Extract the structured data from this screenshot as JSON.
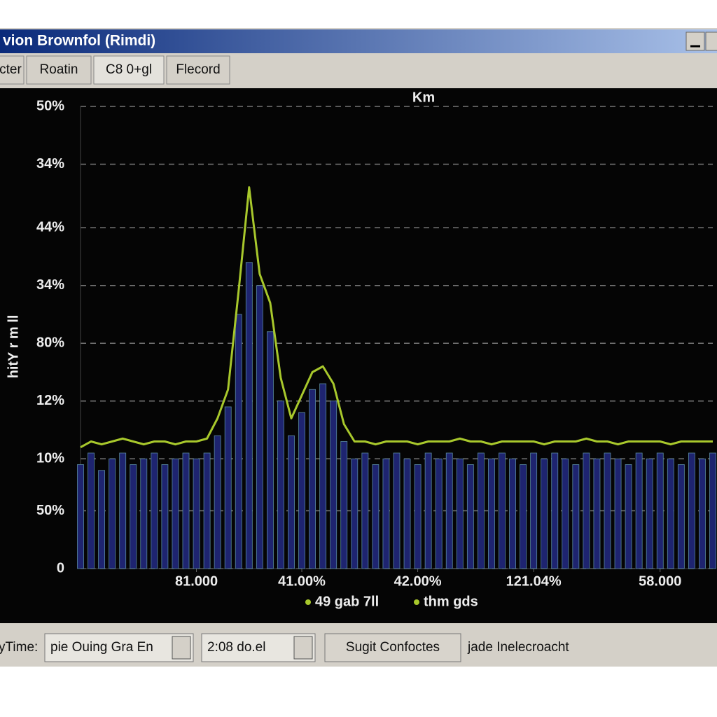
{
  "window": {
    "title": "vion Brownfol (Rimdi)"
  },
  "tabs": [
    "cter",
    "Roatin",
    "C8 0+gl",
    "Flecord"
  ],
  "chart_data": {
    "type": "line",
    "title": "Km",
    "y_label": "hitY r m ll",
    "xlim": [
      0,
      60
    ],
    "ylim": [
      0,
      8
    ],
    "grid": true,
    "xticks": [
      {
        "value": 11,
        "label": "81.000"
      },
      {
        "value": 21,
        "label": "41.00%"
      },
      {
        "value": 32,
        "label": "42.00%"
      },
      {
        "value": 43,
        "label": "121.04%"
      },
      {
        "value": 55,
        "label": "58.000"
      }
    ],
    "yticks": [
      0,
      {
        "value": 1,
        "label": "50%"
      },
      {
        "value": 1.9,
        "label": "10%"
      },
      {
        "value": 2.9,
        "label": "12%"
      },
      {
        "value": 3.9,
        "label": "80%"
      },
      {
        "value": 4.9,
        "label": "34%"
      },
      {
        "value": 5.9,
        "label": "44%"
      },
      {
        "value": 7,
        "label": "34%"
      },
      {
        "value": 8,
        "label": "50%"
      }
    ],
    "x": [
      0,
      1,
      2,
      3,
      4,
      5,
      6,
      7,
      8,
      9,
      10,
      11,
      12,
      13,
      14,
      15,
      16,
      17,
      18,
      19,
      20,
      21,
      22,
      23,
      24,
      25,
      26,
      27,
      28,
      29,
      30,
      31,
      32,
      33,
      34,
      35,
      36,
      37,
      38,
      39,
      40,
      41,
      42,
      43,
      44,
      45,
      46,
      47,
      48,
      49,
      50,
      51,
      52,
      53,
      54,
      55,
      56,
      57,
      58,
      59,
      60
    ],
    "series": [
      {
        "name": "49 gab 7ll",
        "color": "#a8c82c",
        "type": "line",
        "values": [
          2.1,
          2.2,
          2.15,
          2.2,
          2.25,
          2.2,
          2.15,
          2.2,
          2.2,
          2.15,
          2.2,
          2.2,
          2.25,
          2.6,
          3.1,
          4.8,
          6.6,
          5.1,
          4.6,
          3.3,
          2.6,
          3.0,
          3.4,
          3.5,
          3.2,
          2.5,
          2.2,
          2.2,
          2.15,
          2.2,
          2.2,
          2.2,
          2.15,
          2.2,
          2.2,
          2.2,
          2.25,
          2.2,
          2.2,
          2.15,
          2.2,
          2.2,
          2.2,
          2.2,
          2.15,
          2.2,
          2.2,
          2.2,
          2.25,
          2.2,
          2.2,
          2.15,
          2.2,
          2.2,
          2.2,
          2.2,
          2.15,
          2.2,
          2.2,
          2.2,
          2.2
        ]
      },
      {
        "name": "thm gds",
        "color": "#1e2470",
        "type": "bar",
        "values": [
          1.8,
          2.0,
          1.7,
          1.9,
          2.0,
          1.8,
          1.9,
          2.0,
          1.8,
          1.9,
          2.0,
          1.9,
          2.0,
          2.3,
          2.8,
          4.4,
          5.3,
          4.9,
          4.1,
          2.9,
          2.3,
          2.7,
          3.1,
          3.2,
          2.9,
          2.2,
          1.9,
          2.0,
          1.8,
          1.9,
          2.0,
          1.9,
          1.8,
          2.0,
          1.9,
          2.0,
          1.9,
          1.8,
          2.0,
          1.9,
          2.0,
          1.9,
          1.8,
          2.0,
          1.9,
          2.0,
          1.9,
          1.8,
          2.0,
          1.9,
          2.0,
          1.9,
          1.8,
          2.0,
          1.9,
          2.0,
          1.9,
          1.8,
          2.0,
          1.9,
          2.0
        ]
      }
    ]
  },
  "toolbar": {
    "label": "yTime:",
    "combo1": "pie Ouing Gra En",
    "combo2": "2:08 do.el",
    "button": "Sugit Confoctes",
    "status": "jade Inelecroacht"
  }
}
